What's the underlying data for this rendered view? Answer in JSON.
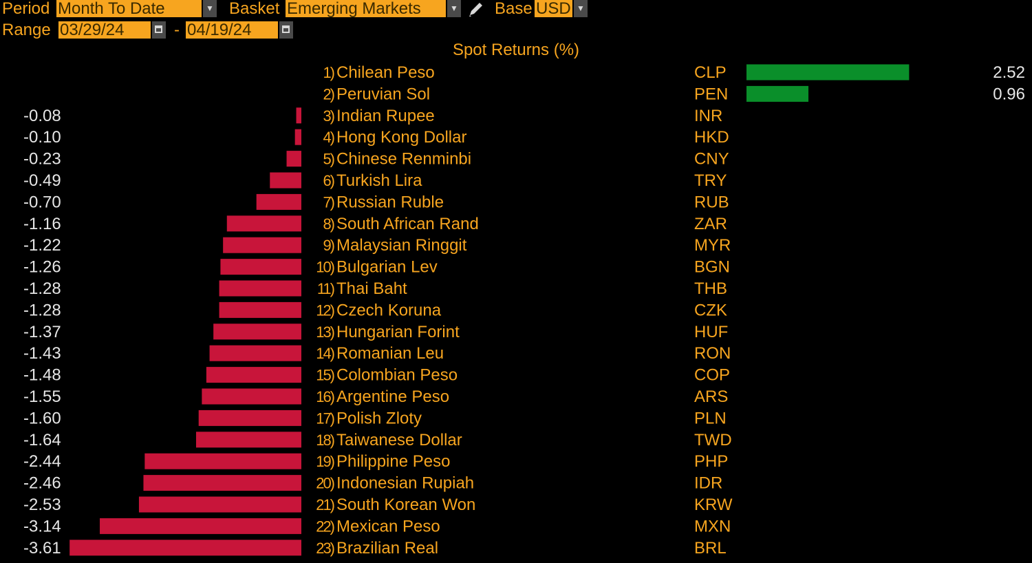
{
  "controls": {
    "period_label": "Period",
    "period_value": "Month To Date",
    "basket_label": "Basket",
    "basket_value": "Emerging Markets",
    "base_label": "Base",
    "base_value": "USD",
    "range_label": "Range",
    "range_start": "03/29/24",
    "range_separator": "-",
    "range_end": "04/19/24",
    "dropdown_icon": "chevron-down-icon",
    "calendar_icon": "calendar-icon",
    "edit_icon": "pencil-icon"
  },
  "colors": {
    "positive": "#0a8f2a",
    "negative": "#c8153a",
    "accent": "#f7a51f",
    "value_text": "#e6e6e6",
    "background": "#000000"
  },
  "chart_data": {
    "type": "bar",
    "orientation": "horizontal",
    "title": "Spot Returns (%)",
    "legend": "none",
    "grid": false,
    "rows": [
      {
        "rank": "1)",
        "name": "Chilean Peso",
        "code": "CLP",
        "value": 2.52,
        "label": "2.52"
      },
      {
        "rank": "2)",
        "name": "Peruvian Sol",
        "code": "PEN",
        "value": 0.96,
        "label": "0.96"
      },
      {
        "rank": "3)",
        "name": "Indian Rupee",
        "code": "INR",
        "value": -0.08,
        "label": "-0.08"
      },
      {
        "rank": "4)",
        "name": "Hong Kong Dollar",
        "code": "HKD",
        "value": -0.1,
        "label": "-0.10"
      },
      {
        "rank": "5)",
        "name": "Chinese Renminbi",
        "code": "CNY",
        "value": -0.23,
        "label": "-0.23"
      },
      {
        "rank": "6)",
        "name": "Turkish Lira",
        "code": "TRY",
        "value": -0.49,
        "label": "-0.49"
      },
      {
        "rank": "7)",
        "name": "Russian Ruble",
        "code": "RUB",
        "value": -0.7,
        "label": "-0.70"
      },
      {
        "rank": "8)",
        "name": "South African Rand",
        "code": "ZAR",
        "value": -1.16,
        "label": "-1.16"
      },
      {
        "rank": "9)",
        "name": "Malaysian Ringgit",
        "code": "MYR",
        "value": -1.22,
        "label": "-1.22"
      },
      {
        "rank": "10)",
        "name": "Bulgarian Lev",
        "code": "BGN",
        "value": -1.26,
        "label": "-1.26"
      },
      {
        "rank": "11)",
        "name": "Thai Baht",
        "code": "THB",
        "value": -1.28,
        "label": "-1.28"
      },
      {
        "rank": "12)",
        "name": "Czech Koruna",
        "code": "CZK",
        "value": -1.28,
        "label": "-1.28"
      },
      {
        "rank": "13)",
        "name": "Hungarian Forint",
        "code": "HUF",
        "value": -1.37,
        "label": "-1.37"
      },
      {
        "rank": "14)",
        "name": "Romanian Leu",
        "code": "RON",
        "value": -1.43,
        "label": "-1.43"
      },
      {
        "rank": "15)",
        "name": "Colombian Peso",
        "code": "COP",
        "value": -1.48,
        "label": "-1.48"
      },
      {
        "rank": "16)",
        "name": "Argentine Peso",
        "code": "ARS",
        "value": -1.55,
        "label": "-1.55"
      },
      {
        "rank": "17)",
        "name": "Polish Zloty",
        "code": "PLN",
        "value": -1.6,
        "label": "-1.60"
      },
      {
        "rank": "18)",
        "name": "Taiwanese Dollar",
        "code": "TWD",
        "value": -1.64,
        "label": "-1.64"
      },
      {
        "rank": "19)",
        "name": "Philippine Peso",
        "code": "PHP",
        "value": -2.44,
        "label": "-2.44"
      },
      {
        "rank": "20)",
        "name": "Indonesian Rupiah",
        "code": "IDR",
        "value": -2.46,
        "label": "-2.46"
      },
      {
        "rank": "21)",
        "name": "South Korean Won",
        "code": "KRW",
        "value": -2.53,
        "label": "-2.53"
      },
      {
        "rank": "22)",
        "name": "Mexican Peso",
        "code": "MXN",
        "value": -3.14,
        "label": "-3.14"
      },
      {
        "rank": "23)",
        "name": "Brazilian Real",
        "code": "BRL",
        "value": -3.61,
        "label": "-3.61"
      }
    ]
  }
}
